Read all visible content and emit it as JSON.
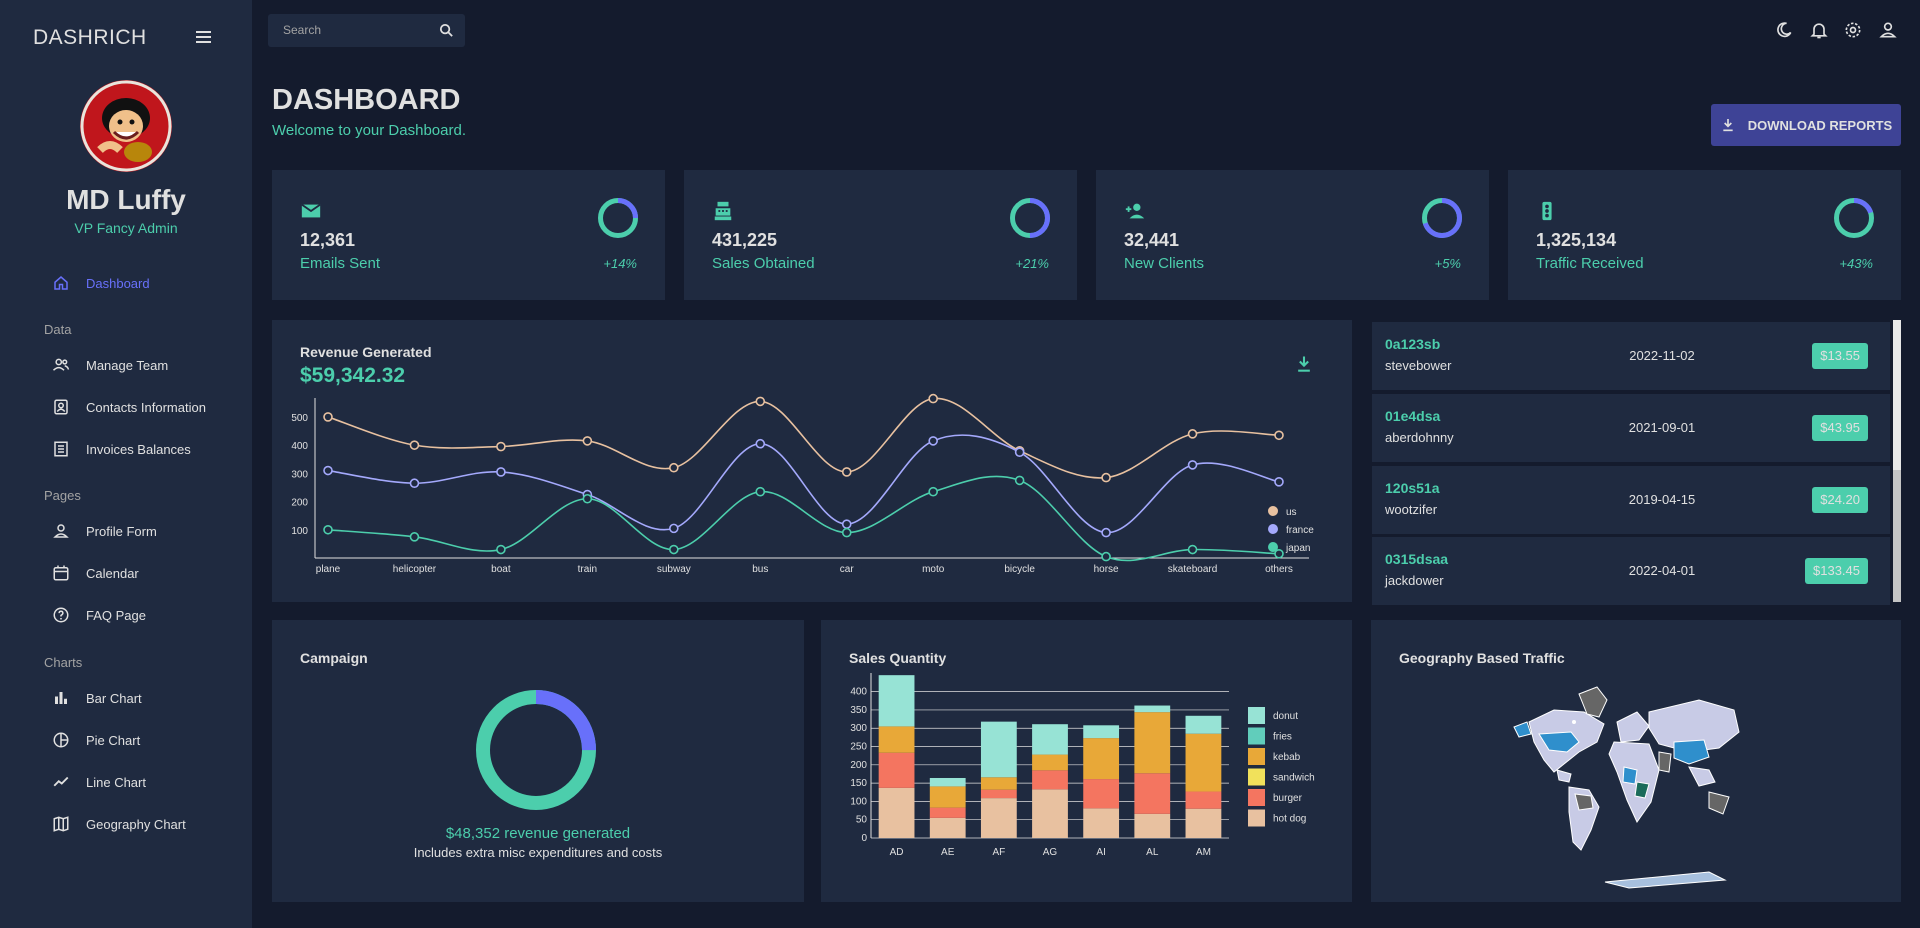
{
  "app": {
    "brand": "DASHRICH"
  },
  "profile": {
    "name": "MD Luffy",
    "role": "VP Fancy Admin"
  },
  "sidebar": {
    "items": [
      {
        "label": "Dashboard",
        "icon": "home-icon",
        "active": true
      },
      {
        "section": "Data"
      },
      {
        "label": "Manage Team",
        "icon": "people-icon"
      },
      {
        "label": "Contacts Information",
        "icon": "contacts-icon"
      },
      {
        "label": "Invoices Balances",
        "icon": "receipt-icon"
      },
      {
        "section": "Pages"
      },
      {
        "label": "Profile Form",
        "icon": "person-icon"
      },
      {
        "label": "Calendar",
        "icon": "calendar-icon"
      },
      {
        "label": "FAQ Page",
        "icon": "help-icon"
      },
      {
        "section": "Charts"
      },
      {
        "label": "Bar Chart",
        "icon": "bar-chart-icon"
      },
      {
        "label": "Pie Chart",
        "icon": "pie-chart-icon"
      },
      {
        "label": "Line Chart",
        "icon": "timeline-icon"
      },
      {
        "label": "Geography Chart",
        "icon": "map-icon"
      }
    ]
  },
  "topbar": {
    "search_placeholder": "Search",
    "icons": [
      "dark-mode-icon",
      "notifications-icon",
      "settings-icon",
      "person-icon"
    ]
  },
  "header": {
    "title": "DASHBOARD",
    "subtitle": "Welcome to your Dashboard.",
    "download_label": "DOWNLOAD REPORTS"
  },
  "stats": [
    {
      "value": "12,361",
      "label": "Emails Sent",
      "increase": "+14%",
      "progress": 0.75,
      "icon": "email-icon"
    },
    {
      "value": "431,225",
      "label": "Sales Obtained",
      "increase": "+21%",
      "progress": 0.5,
      "icon": "point-of-sale-icon"
    },
    {
      "value": "32,441",
      "label": "New Clients",
      "increase": "+5%",
      "progress": 0.3,
      "icon": "person-add-icon"
    },
    {
      "value": "1,325,134",
      "label": "Traffic Received",
      "increase": "+43%",
      "progress": 0.8,
      "icon": "traffic-icon"
    }
  ],
  "revenue": {
    "title": "Revenue Generated",
    "amount": "$59,342.32"
  },
  "transactions": [
    {
      "txId": "0a123sb",
      "user": "stevebower",
      "date": "2022-11-02",
      "cost": "$13.55"
    },
    {
      "txId": "01e4dsa",
      "user": "aberdohnny",
      "date": "2021-09-01",
      "cost": "$43.95"
    },
    {
      "txId": "120s51a",
      "user": "wootzifer",
      "date": "2019-04-15",
      "cost": "$24.20"
    },
    {
      "txId": "0315dsaa",
      "user": "jackdower",
      "date": "2022-04-01",
      "cost": "$133.45"
    }
  ],
  "campaign": {
    "title": "Campaign",
    "amount_text": "$48,352 revenue generated",
    "note": "Includes extra misc expenditures and costs",
    "progress": 0.25
  },
  "sales_quantity": {
    "title": "Sales Quantity"
  },
  "geography": {
    "title": "Geography Based Traffic"
  },
  "colors": {
    "accent": "#4cceac",
    "blue": "#6870fa",
    "button": "#3e4396",
    "panel": "#1f2a40",
    "background": "#141b2d"
  },
  "chart_data": [
    {
      "type": "line",
      "x": [
        "plane",
        "helicopter",
        "boat",
        "train",
        "subway",
        "bus",
        "car",
        "moto",
        "bicycle",
        "horse",
        "skateboard",
        "others"
      ],
      "yticks": [
        100,
        200,
        300,
        400,
        500
      ],
      "ylim": [
        0,
        560
      ],
      "legend_position": "right",
      "series": [
        {
          "name": "us",
          "color": "#e8c1a0",
          "values": [
            500,
            400,
            395,
            415,
            320,
            555,
            305,
            565,
            380,
            285,
            440,
            435
          ]
        },
        {
          "name": "france",
          "color": "#a4a9fc",
          "values": [
            310,
            265,
            305,
            225,
            105,
            405,
            120,
            415,
            375,
            90,
            330,
            270
          ]
        },
        {
          "name": "japan",
          "color": "#4cceac",
          "values": [
            100,
            75,
            30,
            210,
            30,
            235,
            90,
            235,
            275,
            5,
            30,
            15
          ]
        }
      ]
    },
    {
      "type": "bar",
      "stacked": true,
      "categories": [
        "AD",
        "AE",
        "AF",
        "AG",
        "AI",
        "AL",
        "AM"
      ],
      "yticks": [
        0,
        50,
        100,
        150,
        200,
        250,
        300,
        350,
        400
      ],
      "ylim": [
        0,
        440
      ],
      "legend_position": "right",
      "series": [
        {
          "name": "hot dog",
          "color": "#e8c1a0",
          "values": [
            137,
            55,
            109,
            133,
            81,
            66,
            80
          ]
        },
        {
          "name": "burger",
          "color": "#f47560",
          "values": [
            96,
            28,
            23,
            52,
            80,
            111,
            47
          ]
        },
        {
          "name": "sandwich",
          "color": "#f1e15b",
          "values": [
            0,
            0,
            0,
            0,
            0,
            0,
            0
          ]
        },
        {
          "name": "kebab",
          "color": "#e8a838",
          "values": [
            72,
            58,
            34,
            43,
            112,
            167,
            158
          ]
        },
        {
          "name": "fries",
          "color": "#61cdbb",
          "values": [
            0,
            0,
            0,
            0,
            0,
            0,
            0
          ]
        },
        {
          "name": "donut",
          "color": "#97e3d5",
          "values": [
            140,
            23,
            152,
            83,
            35,
            18,
            49
          ]
        }
      ],
      "legend_order": [
        "donut",
        "fries",
        "kebab",
        "sandwich",
        "burger",
        "hot dog"
      ]
    }
  ]
}
